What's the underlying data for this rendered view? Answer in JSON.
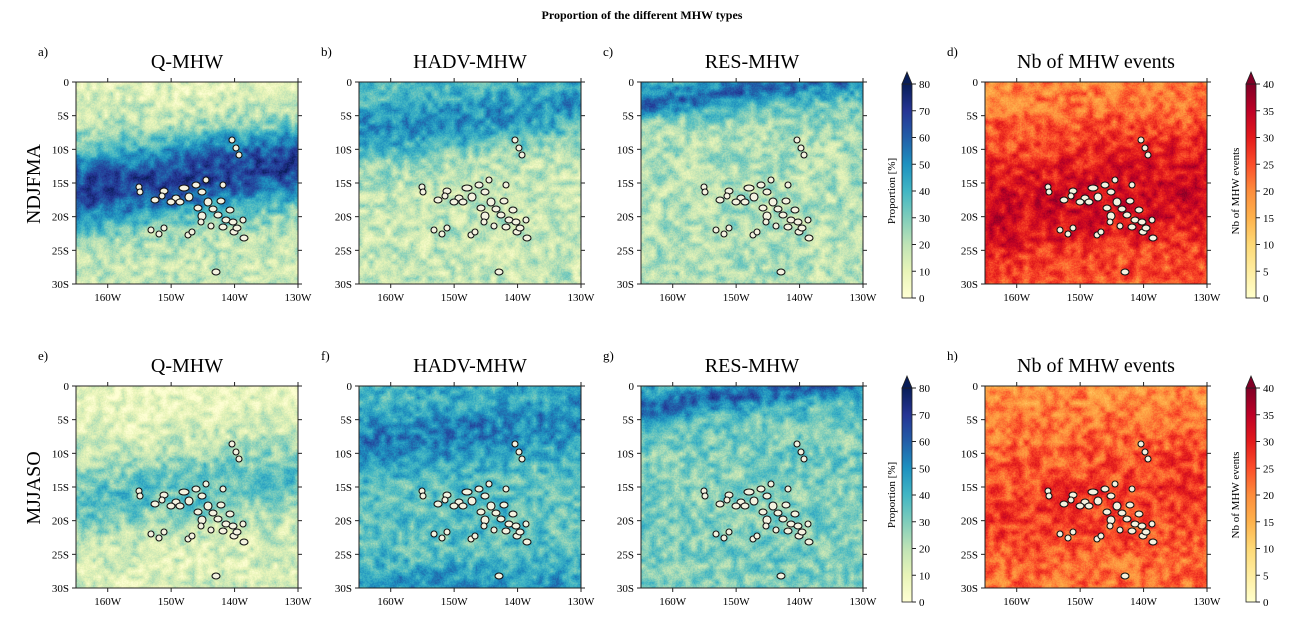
{
  "figure": {
    "title": "Proportion of the different MHW types",
    "row_labels": [
      "NDJFMA",
      "MJJASO"
    ],
    "axis": {
      "x_ticks": [
        "160W",
        "150W",
        "140W",
        "130W"
      ],
      "y_ticks": [
        "0",
        "5S",
        "10S",
        "15S",
        "20S",
        "25S",
        "30S"
      ]
    },
    "colorbars": [
      {
        "label": "Proportion [%]",
        "ticks": [
          "0",
          "10",
          "20",
          "30",
          "40",
          "50",
          "60",
          "70",
          "80"
        ],
        "colors": [
          "#ffffd4",
          "#e8f4b8",
          "#bfe3b6",
          "#7fcdbb",
          "#41b6c4",
          "#1d91c0",
          "#225ea8",
          "#253494",
          "#081d58"
        ]
      },
      {
        "label": "Nb of MHW events",
        "ticks": [
          "0",
          "5",
          "10",
          "15",
          "20",
          "25",
          "30",
          "35",
          "40"
        ],
        "colors": [
          "#ffffcc",
          "#ffeda0",
          "#fed976",
          "#feb24c",
          "#fd8d3c",
          "#fc4e2a",
          "#e31a1c",
          "#bd0026",
          "#800026"
        ]
      }
    ]
  },
  "chart_data": [
    {
      "type": "heatmap",
      "letter": "a)",
      "title": "Q-MHW",
      "season": "NDJFMA",
      "xlim": [
        -165,
        -130
      ],
      "ylim": [
        -30,
        0
      ],
      "colorbar": 0,
      "value_range": [
        0,
        80
      ],
      "band_center_lat": -14,
      "band_peak": 68,
      "band_width": 6,
      "base": 18,
      "north_value": 5,
      "coast": 0
    },
    {
      "type": "heatmap",
      "letter": "b)",
      "title": "HADV-MHW",
      "season": "NDJFMA",
      "xlim": [
        -165,
        -130
      ],
      "ylim": [
        -30,
        0
      ],
      "colorbar": 0,
      "value_range": [
        0,
        80
      ],
      "band_center_lat": -5,
      "band_peak": 50,
      "band_width": 5,
      "base": 18,
      "north_value": 45,
      "coast": 0
    },
    {
      "type": "heatmap",
      "letter": "c)",
      "title": "RES-MHW",
      "season": "NDJFMA",
      "xlim": [
        -165,
        -130
      ],
      "ylim": [
        -30,
        0
      ],
      "colorbar": 0,
      "value_range": [
        0,
        80
      ],
      "band_center_lat": -1,
      "band_peak": 65,
      "band_width": 2,
      "base": 22,
      "north_value": 50,
      "coast": 0
    },
    {
      "type": "heatmap",
      "letter": "d)",
      "title": "Nb of MHW events",
      "season": "NDJFMA",
      "xlim": [
        -165,
        -130
      ],
      "ylim": [
        -30,
        0
      ],
      "colorbar": 1,
      "value_range": [
        0,
        40
      ],
      "band_center_lat": -17,
      "band_peak": 33,
      "band_width": 8,
      "base": 24,
      "north_value": 18,
      "coast": 0
    },
    {
      "type": "heatmap",
      "letter": "e)",
      "title": "Q-MHW",
      "season": "MJJASO",
      "xlim": [
        -165,
        -130
      ],
      "ylim": [
        -30,
        0
      ],
      "colorbar": 0,
      "value_range": [
        0,
        80
      ],
      "band_center_lat": -15,
      "band_peak": 35,
      "band_width": 6,
      "base": 12,
      "north_value": 4,
      "coast": 0
    },
    {
      "type": "heatmap",
      "letter": "f)",
      "title": "HADV-MHW",
      "season": "MJJASO",
      "xlim": [
        -165,
        -130
      ],
      "ylim": [
        -30,
        0
      ],
      "colorbar": 0,
      "value_range": [
        0,
        80
      ],
      "band_center_lat": -6,
      "band_peak": 55,
      "band_width": 5,
      "base": 35,
      "north_value": 40,
      "coast": 48
    },
    {
      "type": "heatmap",
      "letter": "g)",
      "title": "RES-MHW",
      "season": "MJJASO",
      "xlim": [
        -165,
        -130
      ],
      "ylim": [
        -30,
        0
      ],
      "colorbar": 0,
      "value_range": [
        0,
        80
      ],
      "band_center_lat": -1,
      "band_peak": 70,
      "band_width": 2,
      "base": 30,
      "north_value": 45,
      "coast": 0
    },
    {
      "type": "heatmap",
      "letter": "h)",
      "title": "Nb of MHW events",
      "season": "MJJASO",
      "xlim": [
        -165,
        -130
      ],
      "ylim": [
        -30,
        0
      ],
      "colorbar": 1,
      "value_range": [
        0,
        40
      ],
      "band_center_lat": -17,
      "band_peak": 27,
      "band_width": 8,
      "base": 22,
      "north_value": 17,
      "coast": 0
    }
  ]
}
